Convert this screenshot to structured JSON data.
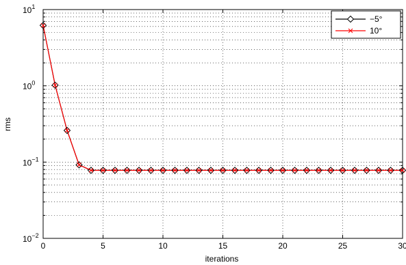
{
  "chart_data": {
    "type": "line",
    "title": "",
    "xlabel": "iterations",
    "ylabel": "rms",
    "xlim": [
      0,
      30
    ],
    "ylim": [
      0.01,
      10
    ],
    "yscale": "log",
    "grid": true,
    "legend_position": "top-right",
    "x": [
      0,
      1,
      2,
      3,
      4,
      5,
      6,
      7,
      8,
      9,
      10,
      11,
      12,
      13,
      14,
      15,
      16,
      17,
      18,
      19,
      20,
      21,
      22,
      23,
      24,
      25,
      26,
      27,
      28,
      29,
      30
    ],
    "x_ticks": [
      "0",
      "5",
      "10",
      "15",
      "20",
      "25",
      "30"
    ],
    "y_ticks": [
      {
        "base": "10",
        "exp": "1"
      },
      {
        "base": "10",
        "exp": "0"
      },
      {
        "base": "10",
        "exp": "−1"
      },
      {
        "base": "10",
        "exp": "−2"
      }
    ],
    "series": [
      {
        "name": "−5°",
        "color": "#000000",
        "marker": "diamond",
        "values": [
          6.2,
          1.02,
          0.26,
          0.092,
          0.078,
          0.078,
          0.078,
          0.078,
          0.078,
          0.078,
          0.078,
          0.078,
          0.078,
          0.078,
          0.078,
          0.078,
          0.078,
          0.078,
          0.078,
          0.078,
          0.078,
          0.078,
          0.078,
          0.078,
          0.078,
          0.078,
          0.078,
          0.078,
          0.078,
          0.078,
          0.078
        ]
      },
      {
        "name": "10°",
        "color": "#ff0000",
        "marker": "x",
        "values": [
          6.2,
          1.02,
          0.26,
          0.092,
          0.078,
          0.078,
          0.078,
          0.078,
          0.078,
          0.078,
          0.078,
          0.078,
          0.078,
          0.078,
          0.078,
          0.078,
          0.078,
          0.078,
          0.078,
          0.078,
          0.078,
          0.078,
          0.078,
          0.078,
          0.078,
          0.078,
          0.078,
          0.078,
          0.078,
          0.078,
          0.078
        ]
      }
    ]
  }
}
